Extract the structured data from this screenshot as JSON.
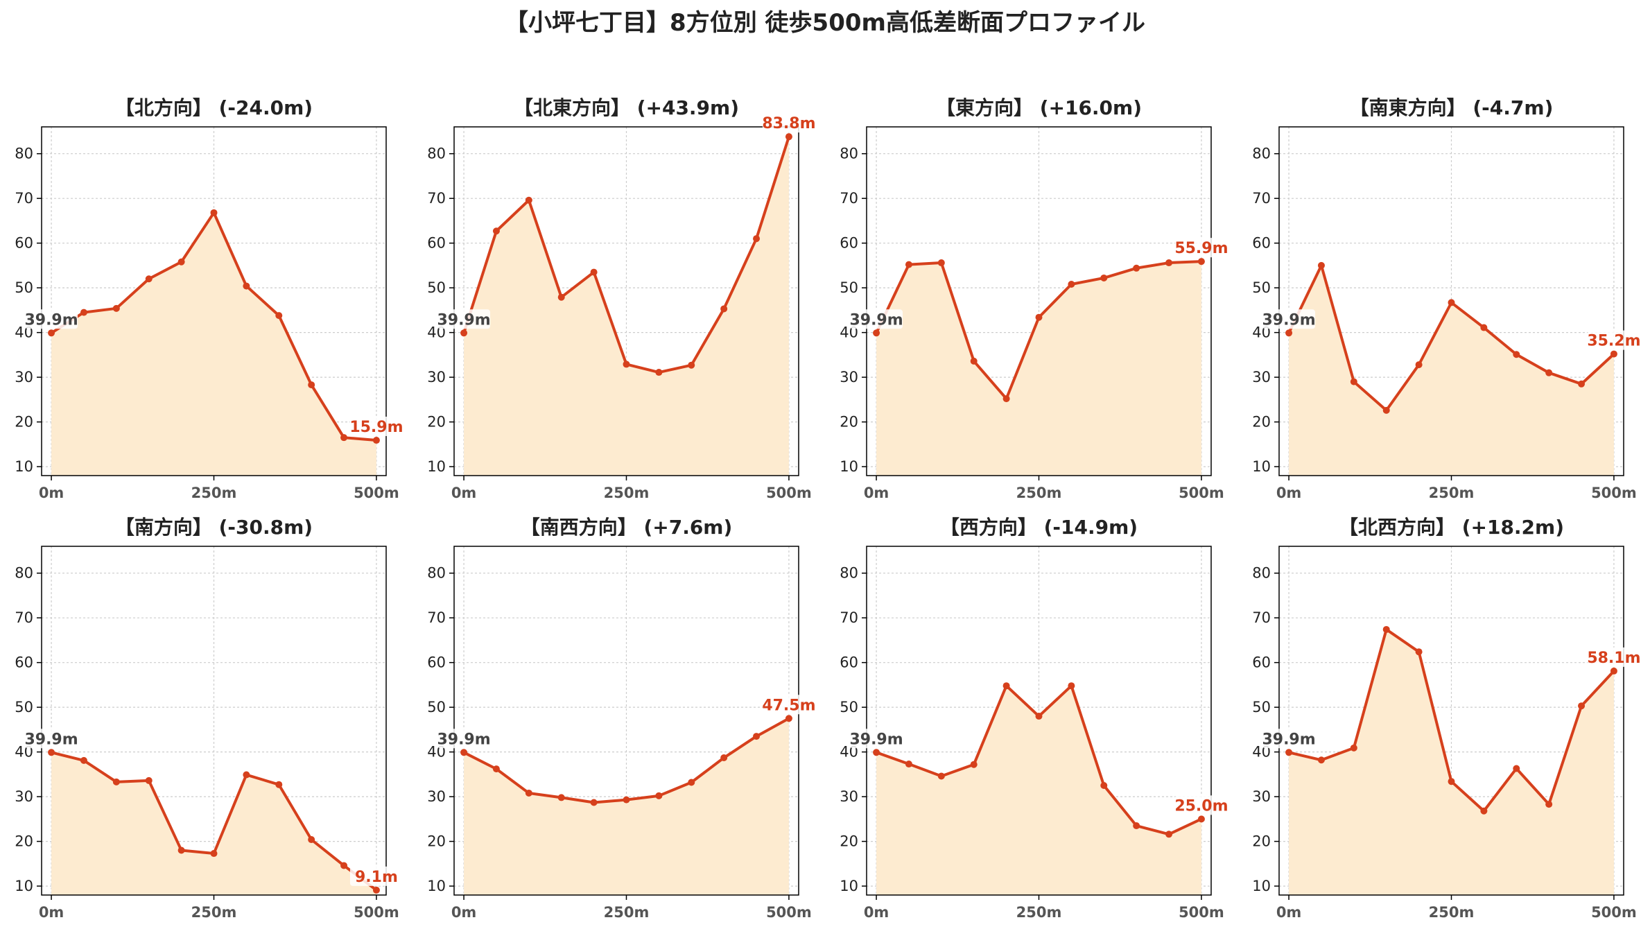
{
  "title": "【小坪七丁目】8方位別 徒歩500m高低差断面プロファイル",
  "colors": {
    "line": "#d6401c",
    "fill": "#fdebd0",
    "start_label": "#444444",
    "end_label": "#d6401c",
    "grid": "#cccccc",
    "axis": "#000000"
  },
  "chart_data": [
    {
      "type": "area",
      "title": "【北方向】 (-24.0m)",
      "x": [
        0,
        50,
        100,
        150,
        200,
        250,
        300,
        350,
        400,
        450,
        500
      ],
      "y": [
        39.9,
        44.5,
        45.4,
        52.0,
        55.8,
        66.8,
        50.4,
        43.8,
        28.3,
        16.5,
        15.9
      ],
      "start_label": "39.9m",
      "end_label": "15.9m",
      "xticks": [
        "0m",
        "250m",
        "500m"
      ],
      "yticks": [
        10,
        20,
        30,
        40,
        50,
        60,
        70,
        80
      ],
      "xlim": [
        -15,
        515
      ],
      "ylim": [
        8,
        86
      ],
      "grid": true
    },
    {
      "type": "area",
      "title": "【北東方向】 (+43.9m)",
      "x": [
        0,
        50,
        100,
        150,
        200,
        250,
        300,
        350,
        400,
        450,
        500
      ],
      "y": [
        39.9,
        62.7,
        69.6,
        47.9,
        53.5,
        32.9,
        31.1,
        32.7,
        45.3,
        61.0,
        83.8
      ],
      "start_label": "39.9m",
      "end_label": "83.8m",
      "xticks": [
        "0m",
        "250m",
        "500m"
      ],
      "yticks": [
        10,
        20,
        30,
        40,
        50,
        60,
        70,
        80
      ],
      "xlim": [
        -15,
        515
      ],
      "ylim": [
        8,
        86
      ],
      "grid": true
    },
    {
      "type": "area",
      "title": "【東方向】 (+16.0m)",
      "x": [
        0,
        50,
        100,
        150,
        200,
        250,
        300,
        350,
        400,
        450,
        500
      ],
      "y": [
        39.9,
        55.2,
        55.6,
        33.6,
        25.2,
        43.4,
        50.8,
        52.2,
        54.4,
        55.6,
        55.9
      ],
      "start_label": "39.9m",
      "end_label": "55.9m",
      "xticks": [
        "0m",
        "250m",
        "500m"
      ],
      "yticks": [
        10,
        20,
        30,
        40,
        50,
        60,
        70,
        80
      ],
      "xlim": [
        -15,
        515
      ],
      "ylim": [
        8,
        86
      ],
      "grid": true
    },
    {
      "type": "area",
      "title": "【南東方向】 (-4.7m)",
      "x": [
        0,
        50,
        100,
        150,
        200,
        250,
        300,
        350,
        400,
        450,
        500
      ],
      "y": [
        39.9,
        55.0,
        29.0,
        22.6,
        32.8,
        46.7,
        41.1,
        35.1,
        31.0,
        28.5,
        35.2
      ],
      "start_label": "39.9m",
      "end_label": "35.2m",
      "xticks": [
        "0m",
        "250m",
        "500m"
      ],
      "yticks": [
        10,
        20,
        30,
        40,
        50,
        60,
        70,
        80
      ],
      "xlim": [
        -15,
        515
      ],
      "ylim": [
        8,
        86
      ],
      "grid": true
    },
    {
      "type": "area",
      "title": "【南方向】 (-30.8m)",
      "x": [
        0,
        50,
        100,
        150,
        200,
        250,
        300,
        350,
        400,
        450,
        500
      ],
      "y": [
        39.9,
        38.1,
        33.3,
        33.6,
        18.0,
        17.3,
        34.9,
        32.7,
        20.4,
        14.6,
        9.1
      ],
      "start_label": "39.9m",
      "end_label": "9.1m",
      "xticks": [
        "0m",
        "250m",
        "500m"
      ],
      "yticks": [
        10,
        20,
        30,
        40,
        50,
        60,
        70,
        80
      ],
      "xlim": [
        -15,
        515
      ],
      "ylim": [
        8,
        86
      ],
      "grid": true
    },
    {
      "type": "area",
      "title": "【南西方向】 (+7.6m)",
      "x": [
        0,
        50,
        100,
        150,
        200,
        250,
        300,
        350,
        400,
        450,
        500
      ],
      "y": [
        39.9,
        36.2,
        30.8,
        29.8,
        28.7,
        29.3,
        30.2,
        33.2,
        38.7,
        43.5,
        47.5
      ],
      "start_label": "39.9m",
      "end_label": "47.5m",
      "xticks": [
        "0m",
        "250m",
        "500m"
      ],
      "yticks": [
        10,
        20,
        30,
        40,
        50,
        60,
        70,
        80
      ],
      "xlim": [
        -15,
        515
      ],
      "ylim": [
        8,
        86
      ],
      "grid": true
    },
    {
      "type": "area",
      "title": "【西方向】 (-14.9m)",
      "x": [
        0,
        50,
        100,
        150,
        200,
        250,
        300,
        350,
        400,
        450,
        500
      ],
      "y": [
        39.9,
        37.3,
        34.6,
        37.2,
        54.8,
        48.0,
        54.8,
        32.5,
        23.5,
        21.6,
        25.0
      ],
      "start_label": "39.9m",
      "end_label": "25.0m",
      "xticks": [
        "0m",
        "250m",
        "500m"
      ],
      "yticks": [
        10,
        20,
        30,
        40,
        50,
        60,
        70,
        80
      ],
      "xlim": [
        -15,
        515
      ],
      "ylim": [
        8,
        86
      ],
      "grid": true
    },
    {
      "type": "area",
      "title": "【北西方向】 (+18.2m)",
      "x": [
        0,
        50,
        100,
        150,
        200,
        250,
        300,
        350,
        400,
        450,
        500
      ],
      "y": [
        39.9,
        38.2,
        40.9,
        67.4,
        62.4,
        33.4,
        26.8,
        36.3,
        28.3,
        50.3,
        58.1
      ],
      "start_label": "39.9m",
      "end_label": "58.1m",
      "xticks": [
        "0m",
        "250m",
        "500m"
      ],
      "yticks": [
        10,
        20,
        30,
        40,
        50,
        60,
        70,
        80
      ],
      "xlim": [
        -15,
        515
      ],
      "ylim": [
        8,
        86
      ],
      "grid": true
    }
  ]
}
